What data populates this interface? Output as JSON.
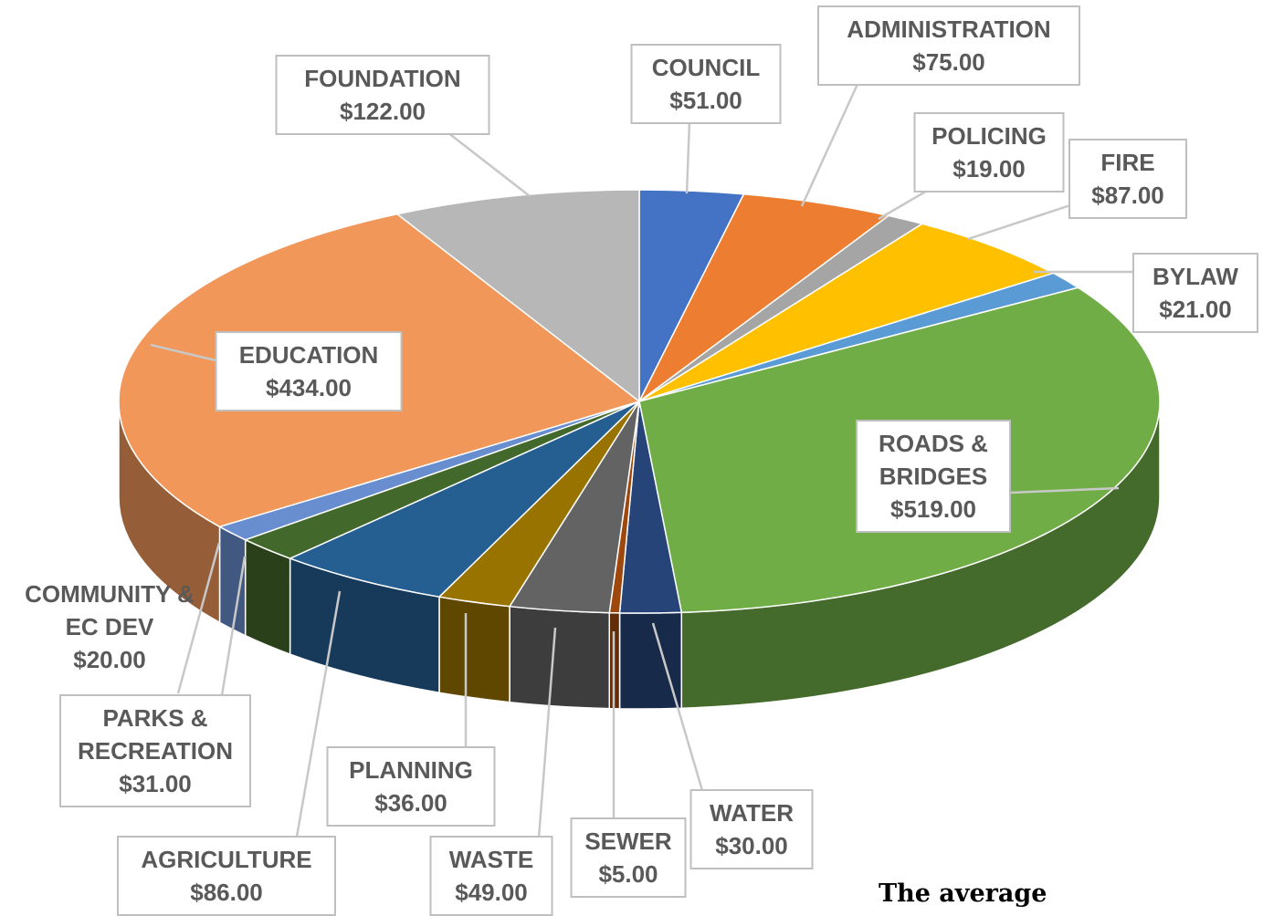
{
  "chart_data": {
    "type": "pie",
    "categories": [
      "COUNCIL",
      "ADMINISTRATION",
      "POLICING",
      "FIRE",
      "BYLAW",
      "ROADS & BRIDGES",
      "WATER",
      "SEWER",
      "WASTE",
      "PLANNING",
      "AGRICULTURE",
      "PARKS & RECREATION",
      "COMMUNITY & EC DEV",
      "EDUCATION",
      "FOUNDATION"
    ],
    "values": [
      51,
      75,
      19,
      87,
      21,
      519,
      30,
      5,
      49,
      36,
      86,
      31,
      20,
      434,
      122
    ],
    "value_labels": [
      "$51.00",
      "$75.00",
      "$19.00",
      "$87.00",
      "$21.00",
      "$519.00",
      "$30.00",
      "$5.00",
      "$49.00",
      "$36.00",
      "$86.00",
      "$31.00",
      "$20.00",
      "$434.00",
      "$122.00"
    ],
    "colors": [
      "#4472c4",
      "#ed7d31",
      "#a5a5a5",
      "#ffc000",
      "#5b9bd5",
      "#70ad47",
      "#264478",
      "#9e480e",
      "#636363",
      "#997300",
      "#255e91",
      "#43682b",
      "#698ed0",
      "#f1975a",
      "#b7b7b7"
    ],
    "annotation": "The average"
  }
}
